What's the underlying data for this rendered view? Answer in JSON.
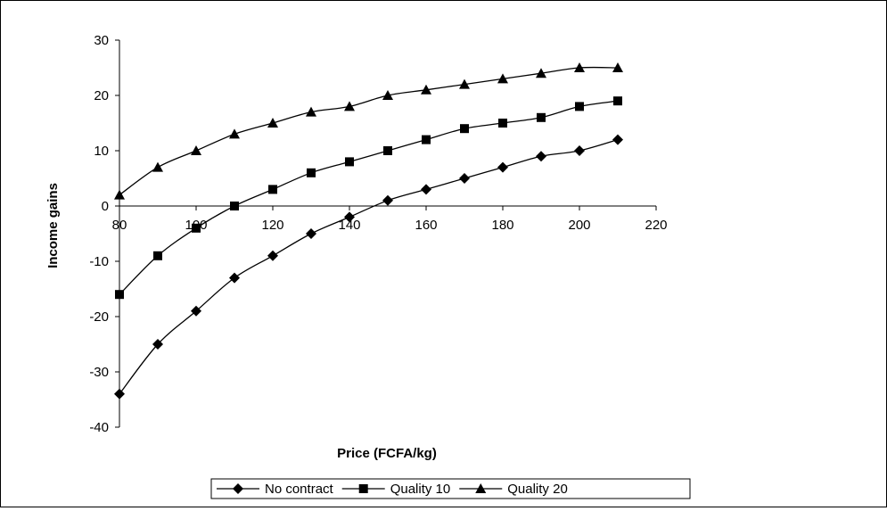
{
  "chart_data": {
    "type": "line",
    "title": "",
    "xlabel": "Price (FCFA/kg)",
    "ylabel": "Income gains",
    "xlim": [
      80,
      220
    ],
    "ylim": [
      -40,
      30
    ],
    "x_ticks": [
      80,
      100,
      120,
      140,
      160,
      180,
      200,
      220
    ],
    "y_ticks": [
      -40,
      -30,
      -20,
      -10,
      0,
      10,
      20,
      30
    ],
    "grid": false,
    "legend_position": "bottom",
    "x": [
      80,
      90,
      100,
      110,
      120,
      130,
      140,
      150,
      160,
      170,
      180,
      190,
      200,
      210
    ],
    "series": [
      {
        "name": "No contract",
        "marker": "diamond",
        "values": [
          -34,
          -25,
          -19,
          -13,
          -9,
          -5,
          -2,
          1,
          3,
          5,
          7,
          9,
          10,
          12
        ]
      },
      {
        "name": "Quality 10",
        "marker": "square",
        "values": [
          -16,
          -9,
          -4,
          0,
          3,
          6,
          8,
          10,
          12,
          14,
          15,
          16,
          18,
          19
        ]
      },
      {
        "name": "Quality 20",
        "marker": "triangle",
        "values": [
          2,
          7,
          10,
          13,
          15,
          17,
          18,
          20,
          21,
          22,
          23,
          24,
          25,
          25
        ]
      }
    ]
  }
}
